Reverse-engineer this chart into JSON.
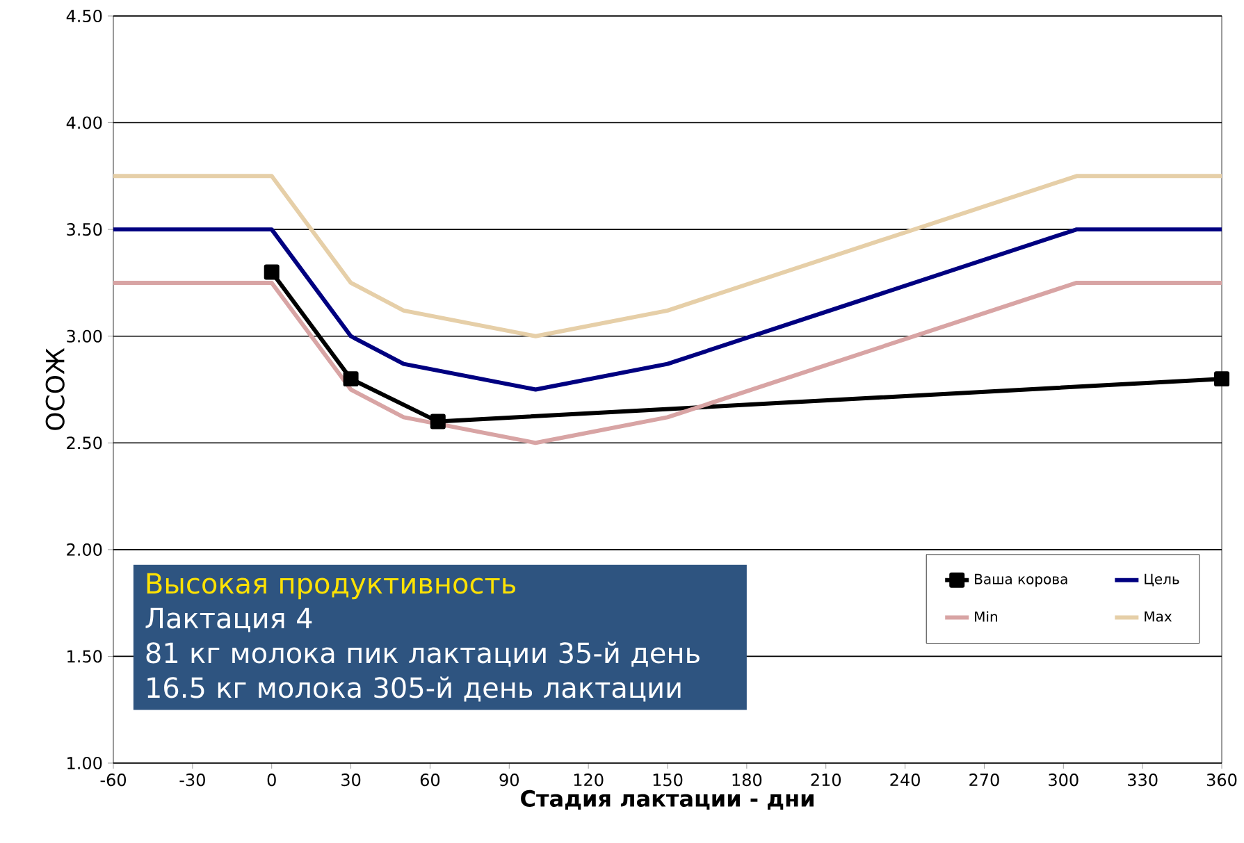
{
  "chart_data": {
    "type": "line",
    "xlabel": "Стадия лактации - дни",
    "ylabel": "ОСОЖ",
    "xlim": [
      -60,
      360
    ],
    "xticks": [
      -60,
      -30,
      0,
      30,
      60,
      90,
      120,
      150,
      180,
      210,
      240,
      270,
      300,
      330,
      360
    ],
    "ylim": [
      1.0,
      4.5
    ],
    "yticks": [
      {
        "value": 1.0,
        "label": "1.00"
      },
      {
        "value": 1.5,
        "label": "1.50"
      },
      {
        "value": 2.0,
        "label": "2.00"
      },
      {
        "value": 2.5,
        "label": "2.50"
      },
      {
        "value": 3.0,
        "label": "3.00"
      },
      {
        "value": 3.5,
        "label": "3.50"
      },
      {
        "value": 4.0,
        "label": "4.00"
      },
      {
        "value": 4.5,
        "label": "4.50"
      }
    ],
    "grid": "y",
    "legend": "bottom right",
    "series": [
      {
        "name": "Ваша корова",
        "color": "#000000",
        "marker": "square",
        "x": [
          0,
          30,
          63,
          360
        ],
        "values": [
          3.3,
          2.8,
          2.6,
          2.8
        ]
      },
      {
        "name": "Цель",
        "color": "#000080",
        "marker": "none",
        "x": [
          -60,
          0,
          30,
          50,
          100,
          150,
          305,
          360
        ],
        "values": [
          3.5,
          3.5,
          3.0,
          2.87,
          2.75,
          2.87,
          3.5,
          3.5
        ]
      },
      {
        "name": "Min",
        "color": "#d8a4a4",
        "marker": "none",
        "x": [
          -60,
          0,
          30,
          50,
          100,
          150,
          305,
          360
        ],
        "values": [
          3.25,
          3.25,
          2.75,
          2.62,
          2.5,
          2.62,
          3.25,
          3.25
        ]
      },
      {
        "name": "Max",
        "color": "#e6cfa8",
        "marker": "none",
        "x": [
          -60,
          0,
          30,
          50,
          100,
          150,
          305,
          360
        ],
        "values": [
          3.75,
          3.75,
          3.25,
          3.12,
          3.0,
          3.12,
          3.75,
          3.75
        ]
      }
    ],
    "annotations": [
      "Высокая продуктивность",
      "Лактация 4",
      "81 кг молока пик лактации 35-й день",
      "16.5 кг молока 305-й день лактации"
    ]
  }
}
